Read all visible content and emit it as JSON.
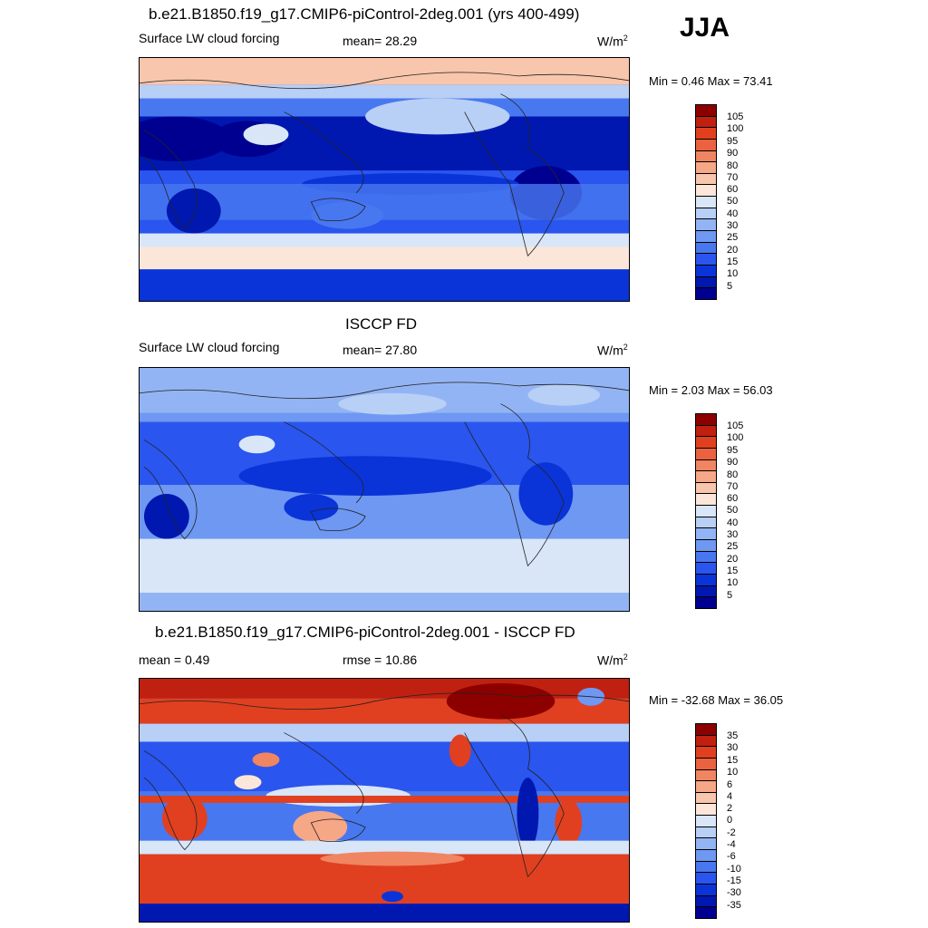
{
  "season": "JJA",
  "colors": {
    "scale_pos": [
      "#000090",
      "#0018b0",
      "#0a34d8",
      "#2a55ee",
      "#4878f0",
      "#6e98f2",
      "#93b4f4",
      "#b8cff6",
      "#d8e6f8",
      "#fbe6d9",
      "#f8c6ac",
      "#f5a786",
      "#f08562",
      "#ea6240",
      "#e04020",
      "#c02010",
      "#8c0000"
    ],
    "scale_diff": [
      "#000090",
      "#0018b0",
      "#0a34d8",
      "#2a55ee",
      "#4878f0",
      "#6e98f2",
      "#93b4f4",
      "#b8cff6",
      "#d8e6f8",
      "#fbe6d9",
      "#f8c6ac",
      "#f5a786",
      "#f08562",
      "#ea6240",
      "#e04020",
      "#c02010",
      "#8c0000"
    ]
  },
  "panels": [
    {
      "title": "b.e21.B1850.f19_g17.CMIP6-piControl-2deg.001 (yrs 400-499)",
      "left_label": "Surface LW cloud forcing",
      "middle_label": "mean=  28.29",
      "units_base": "W/m",
      "units_exp": "2",
      "minmax": "Min =   0.46 Max =  73.41",
      "ticks": [
        "105",
        "100",
        "95",
        "90",
        "80",
        "70",
        "60",
        "50",
        "40",
        "30",
        "25",
        "20",
        "15",
        "10",
        "5"
      ]
    },
    {
      "title": "ISCCP FD",
      "left_label": "Surface LW cloud forcing",
      "middle_label": "mean=  27.80",
      "units_base": "W/m",
      "units_exp": "2",
      "minmax": "Min =   2.03 Max =  56.03",
      "ticks": [
        "105",
        "100",
        "95",
        "90",
        "80",
        "70",
        "60",
        "50",
        "40",
        "30",
        "25",
        "20",
        "15",
        "10",
        "5"
      ]
    },
    {
      "title": "b.e21.B1850.f19_g17.CMIP6-piControl-2deg.001 - ISCCP FD",
      "left_label": "mean =   0.49",
      "middle_label": "rmse =  10.86",
      "units_base": "W/m",
      "units_exp": "2",
      "minmax": "Min = -32.68 Max =  36.05",
      "ticks": [
        "35",
        "30",
        "15",
        "10",
        "6",
        "4",
        "2",
        "0",
        "-2",
        "-4",
        "-6",
        "-10",
        "-15",
        "-30",
        "-35"
      ]
    }
  ]
}
